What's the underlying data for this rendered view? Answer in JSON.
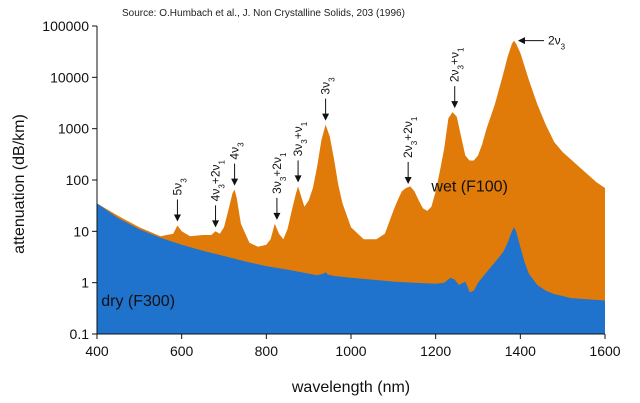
{
  "colors": {
    "wet": "#e07b09",
    "dry": "#1f73cc",
    "text": "#111111"
  },
  "chart_data": {
    "type": "area",
    "source": "Source: O.Humbach et al., J. Non Crystalline Solids, 203 (1996)",
    "xlabel": "wavelength (nm)",
    "ylabel": "attenuation (dB/km)",
    "xlim": [
      400,
      1600
    ],
    "ylim": [
      0.1,
      100000
    ],
    "yscale": "log",
    "grid": false,
    "xticks": [
      400,
      600,
      800,
      1000,
      1200,
      1400,
      1600
    ],
    "yticks": [
      {
        "v": 0.1,
        "label": "0.1"
      },
      {
        "v": 1,
        "label": "1"
      },
      {
        "v": 10,
        "label": "10"
      },
      {
        "v": 100,
        "label": "100"
      },
      {
        "v": 1000,
        "label": "1000"
      },
      {
        "v": 10000,
        "label": "10000"
      },
      {
        "v": 100000,
        "label": "100000"
      }
    ],
    "series": [
      {
        "name": "wet (F100)",
        "color": "#e07b09",
        "x": [
          400,
          450,
          500,
          550,
          580,
          590,
          600,
          620,
          650,
          670,
          680,
          690,
          700,
          710,
          720,
          725,
          730,
          740,
          760,
          780,
          800,
          810,
          820,
          830,
          840,
          850,
          860,
          870,
          875,
          880,
          890,
          900,
          910,
          920,
          930,
          940,
          950,
          960,
          970,
          980,
          1000,
          1030,
          1060,
          1080,
          1100,
          1110,
          1120,
          1130,
          1140,
          1150,
          1160,
          1170,
          1180,
          1190,
          1200,
          1210,
          1220,
          1230,
          1240,
          1250,
          1260,
          1270,
          1280,
          1290,
          1300,
          1310,
          1320,
          1340,
          1360,
          1370,
          1380,
          1385,
          1390,
          1400,
          1420,
          1440,
          1460,
          1480,
          1500,
          1520,
          1550,
          1580,
          1600
        ],
        "y": [
          35,
          20,
          12,
          8,
          9,
          13,
          10,
          8,
          8.5,
          8.5,
          10,
          9,
          12,
          25,
          55,
          65,
          45,
          14,
          6,
          5,
          5.5,
          7,
          14,
          9,
          7,
          11,
          25,
          55,
          75,
          55,
          30,
          40,
          70,
          180,
          600,
          1200,
          700,
          250,
          80,
          35,
          12,
          7,
          7,
          9,
          25,
          40,
          60,
          70,
          75,
          60,
          40,
          28,
          25,
          30,
          60,
          150,
          400,
          1600,
          2100,
          1700,
          700,
          300,
          240,
          240,
          300,
          500,
          1000,
          3000,
          12000,
          25000,
          45000,
          52000,
          45000,
          30000,
          9000,
          3000,
          1200,
          550,
          350,
          250,
          150,
          90,
          70
        ]
      },
      {
        "name": "dry (F300)",
        "color": "#1f73cc",
        "x": [
          400,
          450,
          500,
          550,
          600,
          650,
          700,
          750,
          800,
          850,
          900,
          920,
          935,
          940,
          945,
          960,
          1000,
          1050,
          1100,
          1150,
          1200,
          1220,
          1235,
          1245,
          1255,
          1260,
          1270,
          1275,
          1280,
          1290,
          1300,
          1320,
          1340,
          1360,
          1370,
          1380,
          1385,
          1390,
          1400,
          1410,
          1420,
          1440,
          1460,
          1480,
          1500,
          1520,
          1550,
          1600
        ],
        "y": [
          35,
          18,
          11,
          7.5,
          5.5,
          4.2,
          3.3,
          2.6,
          2.1,
          1.8,
          1.5,
          1.4,
          1.5,
          1.6,
          1.45,
          1.35,
          1.25,
          1.15,
          1.05,
          1.0,
          0.95,
          1.0,
          1.25,
          1.15,
          0.9,
          0.95,
          1.05,
          0.85,
          0.65,
          0.7,
          1.0,
          1.6,
          2.5,
          4,
          6,
          10,
          12,
          10,
          5,
          2.5,
          1.5,
          0.9,
          0.7,
          0.6,
          0.55,
          0.5,
          0.48,
          0.45
        ]
      }
    ],
    "annotations": [
      {
        "x": 590,
        "y": 13,
        "parts": [
          [
            "5ν"
          ],
          [
            "3",
            "sub"
          ]
        ]
      },
      {
        "x": 680,
        "y": 10,
        "parts": [
          [
            "4ν"
          ],
          [
            "3",
            "sub"
          ],
          [
            "+2ν"
          ],
          [
            "1",
            "sub"
          ]
        ]
      },
      {
        "x": 725,
        "y": 65,
        "parts": [
          [
            "4ν"
          ],
          [
            "3",
            "sub"
          ]
        ]
      },
      {
        "x": 825,
        "y": 14,
        "parts": [
          [
            "3ν"
          ],
          [
            "3",
            "sub"
          ],
          [
            "+2ν"
          ],
          [
            "1",
            "sub"
          ]
        ]
      },
      {
        "x": 875,
        "y": 75,
        "parts": [
          [
            "3ν"
          ],
          [
            "3",
            "sub"
          ],
          [
            "+ν"
          ],
          [
            "1",
            "sub"
          ]
        ]
      },
      {
        "x": 940,
        "y": 1200,
        "parts": [
          [
            "3ν"
          ],
          [
            "3",
            "sub"
          ]
        ]
      },
      {
        "x": 1135,
        "y": 70,
        "parts": [
          [
            "2ν"
          ],
          [
            "3",
            "sub"
          ],
          [
            "+2ν"
          ],
          [
            "1",
            "sub"
          ]
        ]
      },
      {
        "x": 1245,
        "y": 2100,
        "parts": [
          [
            "2ν"
          ],
          [
            "3",
            "sub"
          ],
          [
            "+ν"
          ],
          [
            "1",
            "sub"
          ]
        ]
      },
      {
        "x": 1385,
        "y": 52000,
        "parts": [
          [
            "2ν"
          ],
          [
            "3",
            "sub"
          ]
        ],
        "horizontal": true
      }
    ],
    "series_labels": [
      {
        "text": "wet (F100)",
        "x": 1190,
        "y": 60
      },
      {
        "text": "dry (F300)",
        "x": 410,
        "y": 0.35
      }
    ]
  }
}
